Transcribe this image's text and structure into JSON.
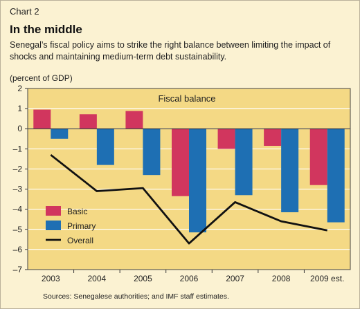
{
  "header": {
    "chart_number": "Chart 2",
    "title": "In the middle",
    "subtitle": "Senegal’s fiscal policy aims to strike the right balance between limiting the impact of shocks and maintaining medium-term debt sustainability.",
    "units": "(percent of GDP)"
  },
  "source": "Sources: Senegalese authorities; and IMF staff estimates.",
  "colors": {
    "plot_bg": "#f4d985",
    "basic": "#d1365e",
    "primary": "#1e6fb3",
    "overall": "#111111",
    "grid": "#ffffff"
  },
  "chart_data": {
    "type": "bar",
    "title": "Fiscal balance",
    "ylabel": "(percent of GDP)",
    "categories": [
      "2003",
      "2004",
      "2005",
      "2006",
      "2007",
      "2008",
      "2009 est."
    ],
    "ylim": [
      -7,
      2
    ],
    "yticks": [
      2,
      1,
      0,
      -1,
      -2,
      -3,
      -4,
      -5,
      -6,
      -7
    ],
    "ytick_labels": [
      "2",
      "1",
      "0",
      "–1",
      "–2",
      "–3",
      "–4",
      "–5",
      "–6",
      "–7"
    ],
    "grid": true,
    "legend_position": "lower-left",
    "series": [
      {
        "name": "Basic",
        "kind": "bar",
        "values": [
          0.95,
          0.72,
          0.88,
          -3.35,
          -1.0,
          -0.85,
          -2.8
        ]
      },
      {
        "name": "Primary",
        "kind": "bar",
        "values": [
          -0.5,
          -1.8,
          -2.3,
          -5.15,
          -3.3,
          -4.15,
          -4.65
        ]
      },
      {
        "name": "Overall",
        "kind": "line",
        "values": [
          -1.3,
          -3.1,
          -2.95,
          -5.7,
          -3.65,
          -4.6,
          -5.05
        ]
      }
    ]
  }
}
